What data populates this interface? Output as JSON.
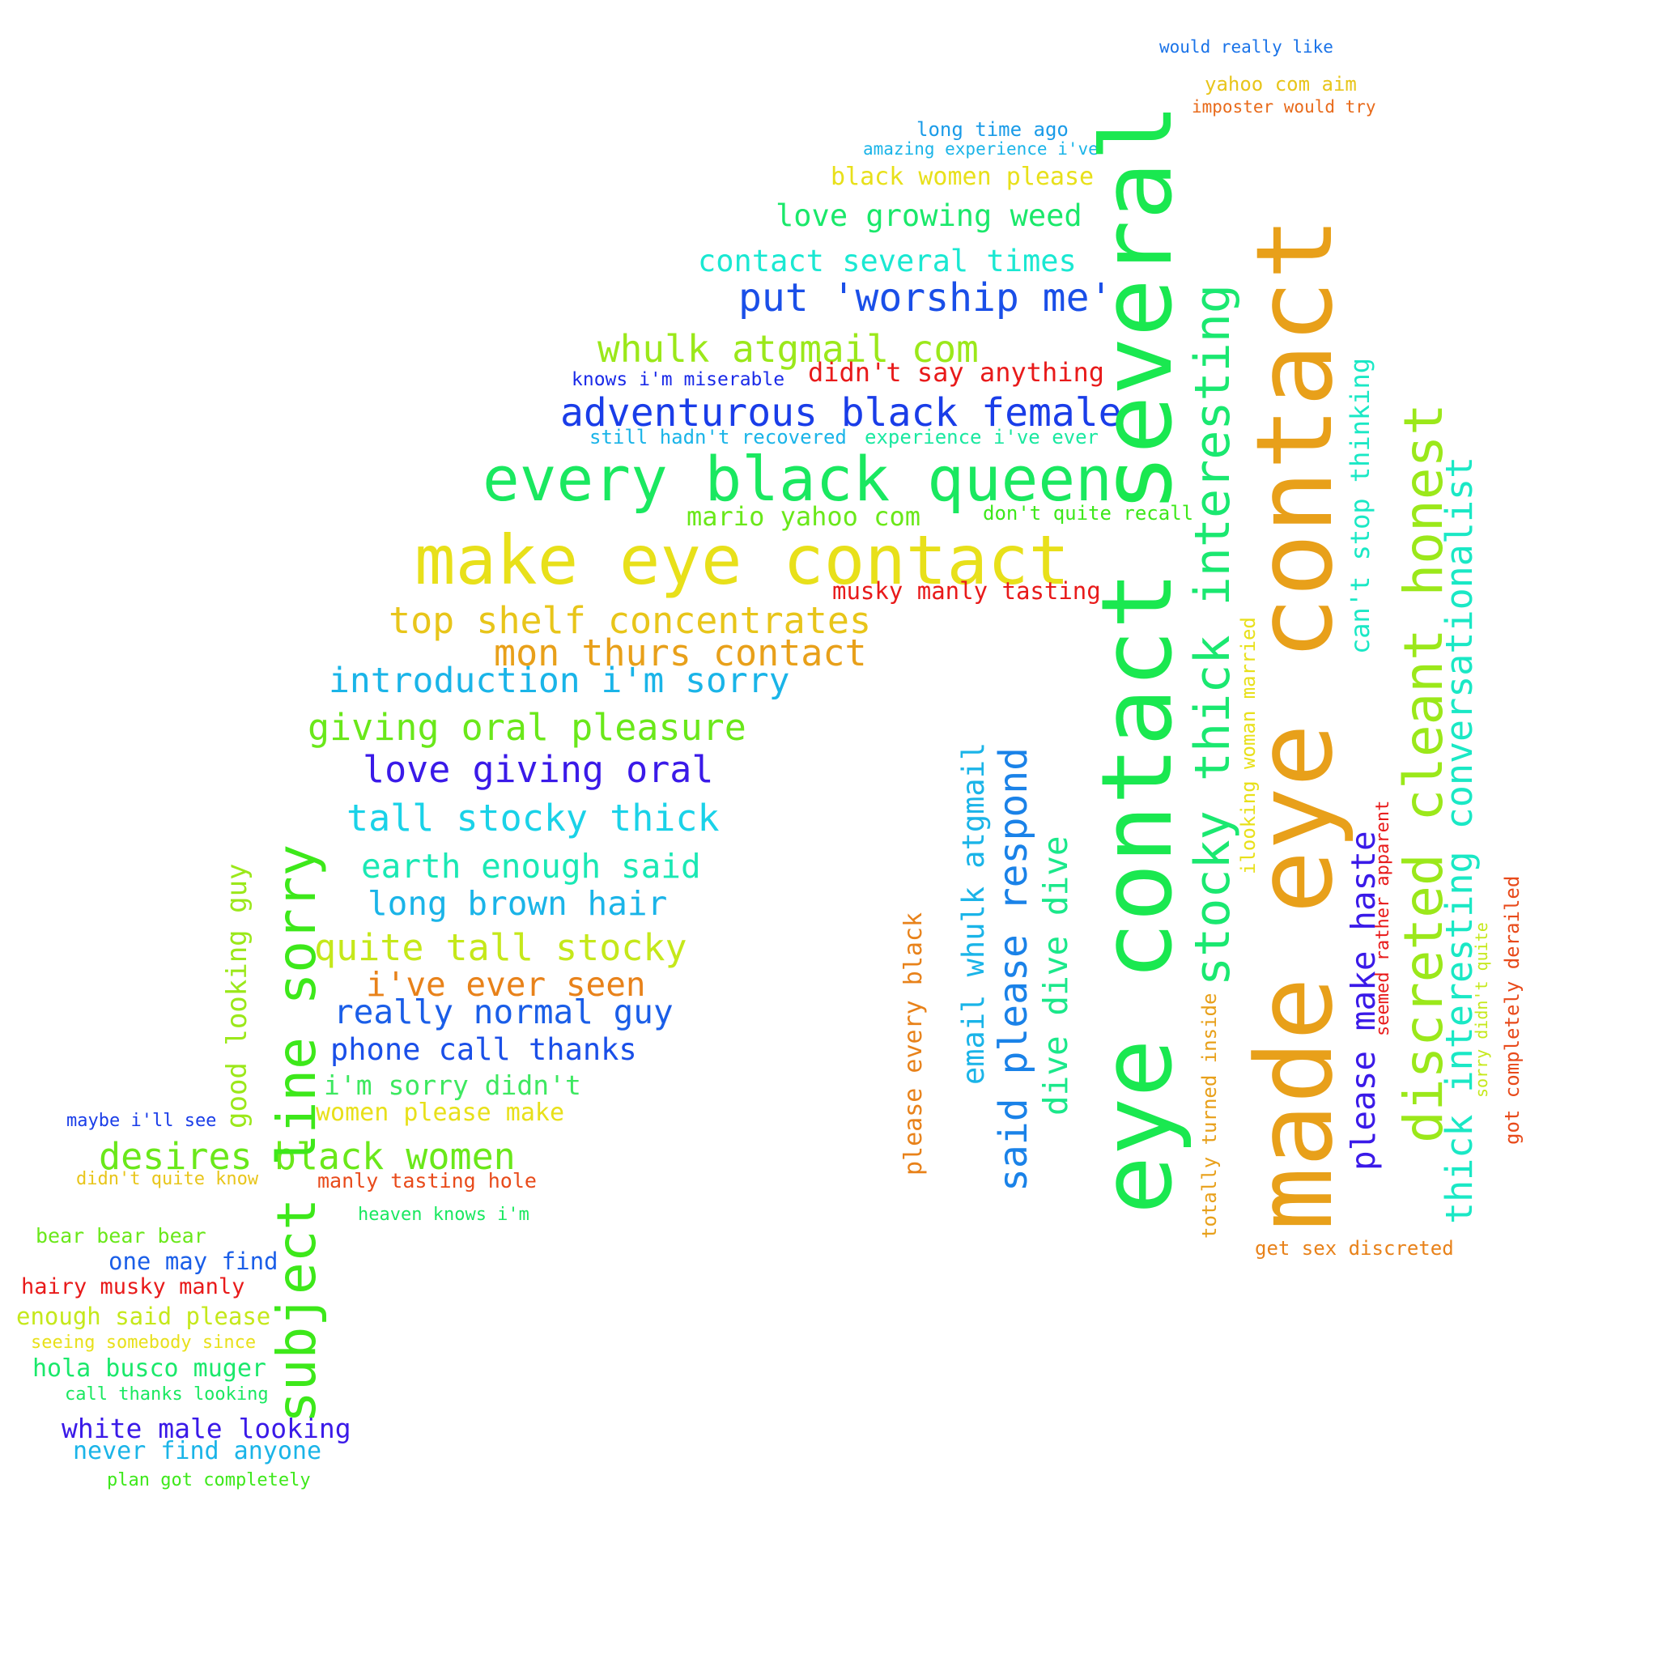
{
  "word_cloud": {
    "phrases": [
      {
        "text": "would really like",
        "color": "#1a73e8"
      },
      {
        "text": "yahoo com aim",
        "color": "#e8c51a"
      },
      {
        "text": "imposter would try",
        "color": "#e86a1a"
      },
      {
        "text": "long time ago",
        "color": "#1a9be8"
      },
      {
        "text": "amazing experience i've",
        "color": "#1ab4e8"
      },
      {
        "text": "black women please",
        "color": "#e8e01a"
      },
      {
        "text": "love growing weed",
        "color": "#1ae86a"
      },
      {
        "text": "contact several times",
        "color": "#1ae8d2"
      },
      {
        "text": "put 'worship me'",
        "color": "#1a4fe8"
      },
      {
        "text": "whulk atgmail com",
        "color": "#9be81a"
      },
      {
        "text": "knows i'm miserable",
        "color": "#1a2ae8"
      },
      {
        "text": "didn't say anything",
        "color": "#e81a1a"
      },
      {
        "text": "adventurous black female",
        "color": "#1a3de8"
      },
      {
        "text": "still hadn't recovered",
        "color": "#1ab4e8"
      },
      {
        "text": "experience i've ever",
        "color": "#1ae8a0"
      },
      {
        "text": "every black queen",
        "color": "#1ae860"
      },
      {
        "text": "mario yahoo com",
        "color": "#6ae81a"
      },
      {
        "text": "don't quite recall",
        "color": "#3de81a"
      },
      {
        "text": "make eye contact",
        "color": "#e8e01a"
      },
      {
        "text": "musky manly tasting",
        "color": "#e81a1a"
      },
      {
        "text": "top shelf concentrates",
        "color": "#e8c51a"
      },
      {
        "text": "mon thurs contact",
        "color": "#e8a01a"
      },
      {
        "text": "introduction i'm sorry",
        "color": "#1ab4e8"
      },
      {
        "text": "giving oral pleasure",
        "color": "#6ae81a"
      },
      {
        "text": "love giving oral",
        "color": "#3a1ae8"
      },
      {
        "text": "tall stocky thick",
        "color": "#1ad2e8"
      },
      {
        "text": "earth enough said",
        "color": "#1ae8b4"
      },
      {
        "text": "long brown hair",
        "color": "#1ab4e8"
      },
      {
        "text": "quite tall stocky",
        "color": "#c5e81a"
      },
      {
        "text": "i've ever seen",
        "color": "#e8821a"
      },
      {
        "text": "really normal guy",
        "color": "#1a5ee8"
      },
      {
        "text": "phone call thanks",
        "color": "#1a4fe8"
      },
      {
        "text": "i'm sorry didn't",
        "color": "#3de860"
      },
      {
        "text": "women please make",
        "color": "#e8e01a"
      },
      {
        "text": "maybe i'll see",
        "color": "#1a3de8"
      },
      {
        "text": "desires black women",
        "color": "#6ae81a"
      },
      {
        "text": "didn't quite know",
        "color": "#e8c51a"
      },
      {
        "text": "manly tasting hole",
        "color": "#e84a1a"
      },
      {
        "text": "heaven knows i'm",
        "color": "#1ae860"
      },
      {
        "text": "bear bear bear",
        "color": "#6ae81a"
      },
      {
        "text": "one may find",
        "color": "#1a5ee8"
      },
      {
        "text": "hairy musky manly",
        "color": "#e81a1a"
      },
      {
        "text": "enough said please",
        "color": "#c5e81a"
      },
      {
        "text": "seeing somebody since",
        "color": "#e8e01a"
      },
      {
        "text": "hola busco muger",
        "color": "#1ae86a"
      },
      {
        "text": "call thanks looking",
        "color": "#1ae860"
      },
      {
        "text": "white male looking",
        "color": "#3a1ae8"
      },
      {
        "text": "never find anyone",
        "color": "#1ab4e8"
      },
      {
        "text": "plan got completely",
        "color": "#3de81a"
      },
      {
        "text": "good looking guy",
        "color": "#9be81a"
      },
      {
        "text": "subject line sorry",
        "color": "#3de81a"
      },
      {
        "text": "please every black",
        "color": "#e8821a"
      },
      {
        "text": "email whulk atgmail",
        "color": "#1ab4e8"
      },
      {
        "text": "said please respond",
        "color": "#1a82e8"
      },
      {
        "text": "dive dive dive",
        "color": "#1ae88a"
      },
      {
        "text": "eye contact several",
        "color": "#1ae850"
      },
      {
        "text": "stocky thick interesting",
        "color": "#1ae870"
      },
      {
        "text": "totally turned inside",
        "color": "#e8a01a"
      },
      {
        "text": "ilooking woman married",
        "color": "#e8e01a"
      },
      {
        "text": "made eye contact",
        "color": "#e8a01a"
      },
      {
        "text": "get sex discreted",
        "color": "#e8821a"
      },
      {
        "text": "can't stop thinking",
        "color": "#1ae8c5"
      },
      {
        "text": "please make haste",
        "color": "#3a1ae8"
      },
      {
        "text": "seemed rather apparent",
        "color": "#e81a1a"
      },
      {
        "text": "discreted cleant honest",
        "color": "#9be81a"
      },
      {
        "text": "thick interesting conversationalist",
        "color": "#1ae8c5"
      },
      {
        "text": "sorry didn't quite",
        "color": "#c5e81a"
      },
      {
        "text": "got completely derailed",
        "color": "#e84a1a"
      }
    ]
  }
}
